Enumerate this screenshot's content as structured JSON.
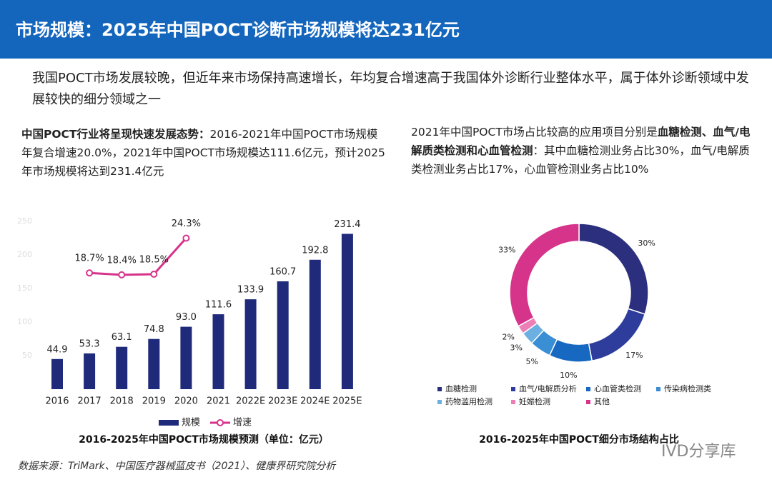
{
  "header": {
    "title": "市场规模：2025年中国POCT诊断市场规模将达231亿元"
  },
  "intro": "我国POCT市场发展较晚，但近年来市场保持高速增长，年均复合增速高于我国体外诊断行业整体水平，属于体外诊断领域中发展较快的细分领域之一",
  "left_text": [
    {
      "text": "中国POCT行业将呈现快速发展态势：",
      "bold": true
    },
    {
      "text": "2016-2021年中国POCT市场规模年复合增速20.0%，2021年中国POCT市场规模达111.6亿元，预计2025年市场规模将达到231.4亿元",
      "bold": false
    }
  ],
  "right_text": [
    {
      "text": "2021年中国POCT市场占比较高的应用项目分别是",
      "bold": false
    },
    {
      "text": "血糖检测、血气/电解质类检测和心血管检测",
      "bold": true
    },
    {
      "text": "：其中血糖检测业务占比30%，血气/电解质类检测业务占比17%，心血管检测业务占比10%",
      "bold": false
    }
  ],
  "source": "数据来源：TriMark、中国医疗器械蓝皮书（2021）、健康界研究院分析",
  "watermark": "IVD分享库",
  "chart_data": [
    {
      "type": "bar",
      "title": "2016-2025年中国POCT市场规模预测（单位：亿元）",
      "categories": [
        "2016",
        "2017",
        "2018",
        "2019",
        "2020",
        "2021",
        "2022E",
        "2023E",
        "2024E",
        "2025E"
      ],
      "series": [
        {
          "name": "规模",
          "type": "bar",
          "color": "#1f2a7a",
          "values": [
            44.9,
            53.3,
            63.1,
            74.8,
            93.0,
            111.6,
            133.9,
            160.7,
            192.8,
            231.4
          ],
          "value_labels": [
            "44.9",
            "53.3",
            "63.1",
            "74.8",
            "93.0",
            "111.6",
            "133.9",
            "160.7",
            "192.8",
            "231.4"
          ]
        },
        {
          "name": "增速",
          "type": "line",
          "axis": "y2",
          "color": "#d6338a",
          "values": [
            null,
            18.7,
            18.4,
            18.5,
            24.3,
            null,
            null,
            null,
            null,
            null
          ],
          "value_labels": [
            null,
            "18.7%",
            "18.4%",
            "18.5%",
            "24.3%",
            null,
            null,
            null,
            null,
            null
          ]
        }
      ],
      "ylim": [
        0,
        250
      ],
      "yticks": [
        50,
        100,
        150,
        200,
        250
      ],
      "y2lim": [
        0,
        27
      ],
      "legend": "bottom"
    },
    {
      "type": "pie",
      "title": "2016-2025年中国POCT细分市场结构占比",
      "categories": [
        "血糖检测",
        "血气/电解质分析",
        "心血管类检测",
        "传染病检测类",
        "药物滥用检测",
        "妊娠检测",
        "其他"
      ],
      "values": [
        30,
        17,
        10,
        5,
        3,
        2,
        33
      ],
      "value_labels": [
        "30%",
        "17%",
        "10%",
        "5%",
        "3%",
        "2%",
        "33%"
      ],
      "colors": [
        "#2b2f7e",
        "#2e3c9c",
        "#1668c0",
        "#3a8ed4",
        "#6cb0e2",
        "#ec7fb6",
        "#d6338a"
      ],
      "donut": true,
      "legend": "bottom"
    }
  ]
}
